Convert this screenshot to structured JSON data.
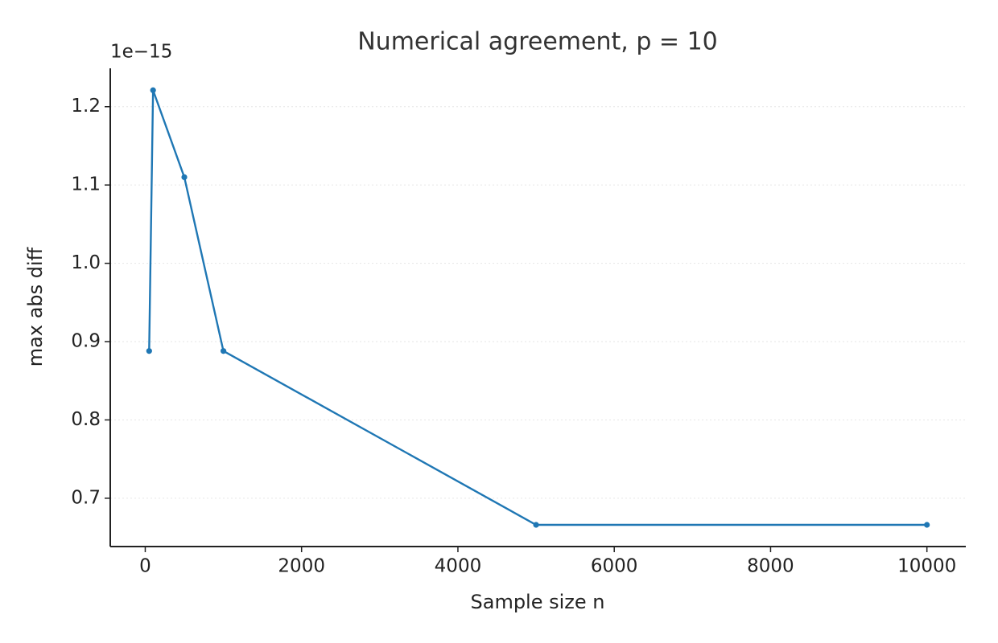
{
  "chart_data": {
    "type": "line",
    "title": "Numerical agreement, p = 10",
    "x_label": "Sample size n",
    "y_label": "max abs diff",
    "y_offset_label": "1e−15",
    "x": [
      50,
      100,
      500,
      1000,
      5000,
      10000
    ],
    "series": [
      {
        "name": "max abs diff",
        "color": "#1f77b4",
        "values": [
          8.88e-16,
          1.221e-15,
          1.11e-15,
          8.88e-16,
          6.66e-16,
          6.66e-16
        ]
      }
    ],
    "xlim": [
      -447.5,
      10497.5
    ],
    "xticks": [
      0,
      2000,
      4000,
      6000,
      8000,
      10000
    ],
    "ylim": [
      6.383e-16,
      1.249e-15
    ],
    "yticks": [
      {
        "value": 7e-16,
        "label": "0.7"
      },
      {
        "value": 8e-16,
        "label": "0.8"
      },
      {
        "value": 9e-16,
        "label": "0.9"
      },
      {
        "value": 1e-15,
        "label": "1.0"
      },
      {
        "value": 1.1e-15,
        "label": "1.1"
      },
      {
        "value": 1.2e-15,
        "label": "1.2"
      }
    ],
    "grid": true
  }
}
